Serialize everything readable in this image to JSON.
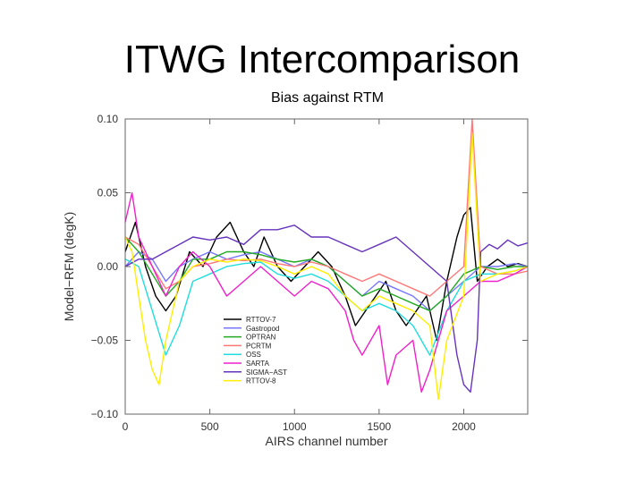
{
  "slide": {
    "title": "ITWG Intercomparison"
  },
  "chart_data": {
    "type": "line",
    "title": "Bias against RTM",
    "xlabel": "AIRS channel number",
    "ylabel": "Model−RFM (degK)",
    "xlim": [
      0,
      2378
    ],
    "ylim": [
      -0.1,
      0.1
    ],
    "xticks": [
      0,
      500,
      1000,
      1500,
      2000
    ],
    "xtick_labels": [
      "0",
      "500",
      "1000",
      "1500",
      "2000"
    ],
    "yticks": [
      0.1,
      0.05,
      0.0,
      -0.05,
      -0.1
    ],
    "ytick_labels": [
      "0.10",
      "0.05",
      "0.00",
      "−0.05",
      "−0.10"
    ],
    "grid": false,
    "legend_position": "lower-center",
    "series": [
      {
        "name": "RTTOV-7",
        "color": "#000000",
        "x": [
          0,
          60,
          120,
          180,
          240,
          300,
          380,
          460,
          540,
          620,
          700,
          760,
          820,
          900,
          980,
          1060,
          1140,
          1220,
          1300,
          1360,
          1420,
          1480,
          1540,
          1600,
          1660,
          1720,
          1780,
          1840,
          1900,
          1960,
          2000,
          2040,
          2080,
          2140,
          2200,
          2260,
          2320,
          2378
        ],
        "y": [
          0.01,
          0.03,
          0.0,
          -0.02,
          -0.03,
          -0.02,
          0.01,
          0.0,
          0.02,
          0.03,
          0.01,
          0.0,
          0.02,
          0.0,
          -0.01,
          0.0,
          0.01,
          0.0,
          -0.02,
          -0.04,
          -0.03,
          -0.02,
          -0.01,
          -0.03,
          -0.04,
          -0.03,
          -0.02,
          -0.05,
          -0.01,
          0.02,
          0.035,
          0.04,
          -0.01,
          0.0,
          0.005,
          0.0,
          0.002,
          0.0
        ]
      },
      {
        "name": "Gastropod",
        "color": "#7777ff",
        "x": [
          0,
          80,
          160,
          240,
          320,
          400,
          500,
          600,
          700,
          800,
          900,
          1000,
          1100,
          1200,
          1300,
          1400,
          1500,
          1600,
          1700,
          1800,
          1900,
          2000,
          2100,
          2200,
          2300,
          2378
        ],
        "y": [
          0.0,
          0.01,
          0.005,
          -0.01,
          0.0,
          0.005,
          0.01,
          0.005,
          0.008,
          0.01,
          0.005,
          0.0,
          0.005,
          0.0,
          -0.01,
          -0.02,
          -0.01,
          -0.015,
          -0.02,
          -0.03,
          -0.02,
          -0.01,
          0.0,
          0.0,
          0.002,
          0.0
        ]
      },
      {
        "name": "OPTRAN",
        "color": "#22aa22",
        "x": [
          0,
          80,
          160,
          240,
          320,
          400,
          500,
          600,
          700,
          800,
          900,
          1000,
          1100,
          1200,
          1300,
          1400,
          1500,
          1600,
          1700,
          1800,
          1900,
          2000,
          2100,
          2200,
          2300,
          2378
        ],
        "y": [
          0.02,
          0.01,
          -0.005,
          -0.02,
          -0.01,
          0.005,
          0.005,
          0.01,
          0.01,
          0.008,
          0.005,
          0.003,
          0.005,
          0.0,
          -0.01,
          -0.02,
          -0.015,
          -0.02,
          -0.025,
          -0.03,
          -0.02,
          -0.005,
          0.0,
          -0.002,
          0.0,
          0.0
        ]
      },
      {
        "name": "PCRTM",
        "color": "#ff7777",
        "x": [
          0,
          80,
          160,
          240,
          320,
          400,
          500,
          600,
          700,
          800,
          900,
          1000,
          1100,
          1200,
          1300,
          1400,
          1500,
          1600,
          1700,
          1800,
          1900,
          2000,
          2050,
          2100,
          2200,
          2300,
          2378
        ],
        "y": [
          0.02,
          0.015,
          0.0,
          -0.015,
          -0.01,
          0.0,
          0.002,
          0.005,
          0.004,
          0.005,
          0.002,
          0.0,
          0.003,
          0.0,
          -0.005,
          -0.01,
          -0.005,
          -0.01,
          -0.015,
          -0.02,
          -0.01,
          0.0,
          0.1,
          0.0,
          -0.005,
          -0.005,
          -0.003
        ]
      },
      {
        "name": "OSS",
        "color": "#22dddd",
        "x": [
          0,
          80,
          160,
          240,
          320,
          400,
          500,
          600,
          700,
          800,
          900,
          1000,
          1100,
          1200,
          1300,
          1400,
          1500,
          1600,
          1700,
          1800,
          1900,
          2000,
          2100,
          2200,
          2300,
          2378
        ],
        "y": [
          0.005,
          0.0,
          -0.03,
          -0.06,
          -0.04,
          -0.01,
          -0.005,
          0.0,
          0.002,
          0.003,
          -0.005,
          -0.008,
          -0.005,
          -0.01,
          -0.02,
          -0.03,
          -0.025,
          -0.03,
          -0.04,
          -0.06,
          -0.03,
          -0.01,
          -0.005,
          -0.005,
          -0.003,
          0.0
        ]
      },
      {
        "name": "SARTA",
        "color": "#ee22cc",
        "x": [
          0,
          40,
          80,
          160,
          240,
          320,
          400,
          500,
          600,
          700,
          800,
          900,
          1000,
          1100,
          1200,
          1300,
          1350,
          1400,
          1500,
          1550,
          1600,
          1700,
          1750,
          1800,
          1900,
          2000,
          2100,
          2200,
          2300,
          2378
        ],
        "y": [
          0.03,
          0.05,
          0.02,
          0.0,
          -0.02,
          0.0,
          0.01,
          0.0,
          -0.02,
          -0.01,
          0.0,
          -0.01,
          -0.02,
          -0.01,
          -0.015,
          -0.03,
          -0.05,
          -0.06,
          -0.04,
          -0.08,
          -0.06,
          -0.05,
          -0.085,
          -0.07,
          -0.03,
          -0.02,
          -0.01,
          -0.01,
          -0.005,
          0.0
        ]
      },
      {
        "name": "SIGMA−AST",
        "color": "#6633bb",
        "x": [
          0,
          80,
          160,
          240,
          320,
          400,
          500,
          600,
          700,
          800,
          900,
          1000,
          1100,
          1200,
          1300,
          1400,
          1500,
          1600,
          1700,
          1800,
          1900,
          1960,
          2000,
          2040,
          2080,
          2100,
          2150,
          2200,
          2260,
          2320,
          2378
        ],
        "y": [
          0.0,
          0.005,
          0.005,
          0.01,
          0.015,
          0.02,
          0.018,
          0.02,
          0.015,
          0.025,
          0.025,
          0.028,
          0.02,
          0.02,
          0.015,
          0.01,
          0.015,
          0.02,
          0.01,
          0.0,
          -0.01,
          -0.06,
          -0.08,
          -0.085,
          -0.05,
          0.01,
          0.015,
          0.012,
          0.018,
          0.014,
          0.016
        ]
      },
      {
        "name": "RTTOV-8",
        "color": "#ffee00",
        "x": [
          0,
          40,
          80,
          120,
          160,
          200,
          240,
          280,
          320,
          400,
          500,
          600,
          700,
          800,
          900,
          1000,
          1100,
          1200,
          1300,
          1400,
          1500,
          1600,
          1700,
          1800,
          1850,
          1900,
          2000,
          2050,
          2100,
          2200,
          2300,
          2378
        ],
        "y": [
          0.02,
          0.01,
          -0.02,
          -0.05,
          -0.07,
          -0.08,
          -0.05,
          -0.03,
          -0.01,
          0.0,
          0.005,
          0.003,
          0.005,
          0.004,
          0.0,
          -0.005,
          0.0,
          -0.005,
          -0.02,
          -0.03,
          -0.02,
          -0.025,
          -0.03,
          -0.04,
          -0.09,
          -0.05,
          -0.02,
          0.09,
          -0.01,
          -0.005,
          -0.003,
          0.0
        ]
      }
    ]
  }
}
